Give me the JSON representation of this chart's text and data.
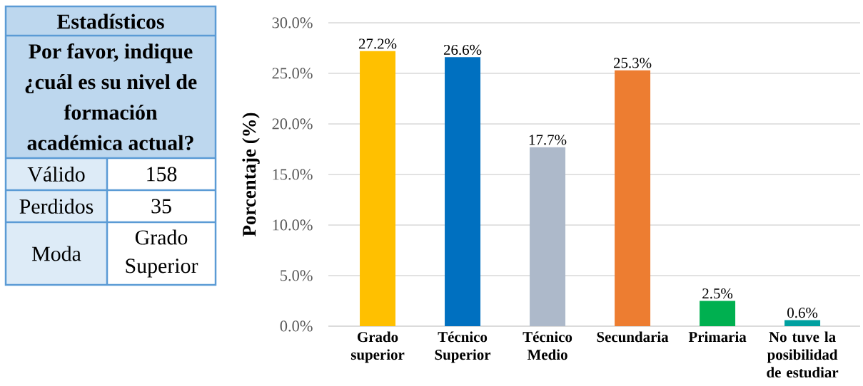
{
  "chart_data": [
    {
      "type": "other",
      "title": "Estadísticos",
      "subtitle": "Por favor, indique ¿cuál es su nivel de formación académica actual?",
      "annotations": [
        "Válido",
        "158",
        "Perdidos",
        "35",
        "Moda",
        "Grado Superior"
      ]
    },
    {
      "type": "bar",
      "ylabel": "Porcentaje (%)",
      "categories": [
        "Grado superior",
        "Técnico Superior",
        "Técnico Medio",
        "Secundaria",
        "Primaria",
        "No tuve la posibilidad de estudiar"
      ],
      "values": [
        27.2,
        26.6,
        17.7,
        25.3,
        2.5,
        0.6
      ],
      "colors": [
        "#ffc000",
        "#0070c0",
        "#adb9ca",
        "#ed7d31",
        "#00b050",
        "#00a0a0"
      ],
      "value_labels": [
        "27.2%",
        "26.6%",
        "17.7%",
        "25.3%",
        "2.5%",
        "0.6%"
      ],
      "ylim": [
        0,
        30
      ],
      "yticks": [
        {
          "value": 0,
          "label": "0.0%"
        },
        {
          "value": 5,
          "label": "5.0%"
        },
        {
          "value": 10,
          "label": "10.0%"
        },
        {
          "value": 15,
          "label": "15.0%"
        },
        {
          "value": 20,
          "label": "20.0%"
        },
        {
          "value": 25,
          "label": "25.0%"
        },
        {
          "value": 30,
          "label": "30.0%"
        }
      ],
      "grid": "y"
    }
  ]
}
